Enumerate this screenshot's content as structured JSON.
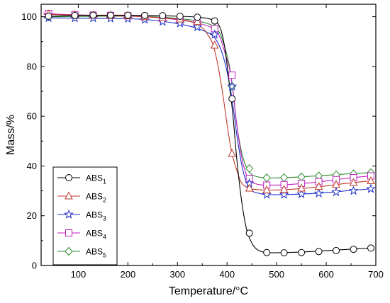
{
  "chart_data": {
    "type": "line",
    "xlabel": "Temperature/°C",
    "ylabel": "Mass/%",
    "xlim": [
      25,
      700
    ],
    "ylim": [
      0,
      105
    ],
    "x_ticks": [
      100,
      200,
      300,
      400,
      500,
      600,
      700
    ],
    "y_ticks": [
      0,
      20,
      40,
      60,
      80,
      100
    ],
    "x_tick_labels": [
      "100",
      "200",
      "300",
      "400",
      "500",
      "600",
      "700"
    ],
    "y_tick_labels": [
      "0",
      "20",
      "40",
      "60",
      "80",
      "100"
    ],
    "legend_position": "bottom-left",
    "grid": false,
    "series": [
      {
        "name": "ABS1",
        "label_base": "ABS",
        "label_sub": "1",
        "color": "#000000",
        "marker": "circle",
        "x": [
          30,
          60,
          100,
          150,
          200,
          250,
          300,
          340,
          370,
          385,
          395,
          405,
          412,
          420,
          430,
          440,
          450,
          460,
          475,
          490,
          520,
          560,
          620,
          690
        ],
        "y": [
          100,
          100.3,
          100.5,
          100.6,
          100.6,
          100.5,
          100.2,
          99.8,
          98.8,
          96,
          88,
          72,
          60,
          42,
          25,
          14,
          9,
          6.5,
          5.3,
          5.1,
          5.2,
          5.5,
          6.2,
          7.0
        ],
        "marker_x": [
          40,
          93,
          130,
          165,
          200,
          234,
          270,
          305,
          340,
          375,
          410,
          445,
          480,
          515,
          550,
          585,
          620,
          655,
          690
        ],
        "marker_y": [
          100.2,
          100.5,
          100.6,
          100.6,
          100.6,
          100.5,
          100.4,
          100.2,
          99.8,
          98.3,
          67,
          13,
          5.2,
          5.1,
          5.2,
          5.6,
          6.0,
          6.5,
          7.0
        ]
      },
      {
        "name": "ABS2",
        "label_base": "ABS",
        "label_sub": "2",
        "color": "#c0392b",
        "marker": "triangle",
        "x": [
          30,
          60,
          100,
          150,
          200,
          250,
          300,
          330,
          350,
          362,
          372,
          382,
          392,
          402,
          410,
          420,
          430,
          445,
          460,
          480,
          520,
          580,
          640,
          690
        ],
        "y": [
          101,
          100.8,
          100.6,
          100.4,
          100.2,
          99.8,
          99,
          97.8,
          95.5,
          92.5,
          88.5,
          80,
          68,
          54,
          45,
          38,
          33,
          31,
          30.5,
          30.3,
          30.5,
          31.5,
          33,
          34
        ],
        "marker_x": [
          40,
          93,
          130,
          165,
          200,
          234,
          270,
          305,
          340,
          375,
          410,
          445,
          480,
          515,
          550,
          585,
          620,
          655,
          690
        ],
        "marker_y": [
          101,
          100.7,
          100.6,
          100.5,
          100.3,
          100,
          99.6,
          99,
          98,
          88.5,
          45,
          31,
          30.3,
          30.5,
          31,
          31.7,
          32.5,
          33.3,
          34
        ]
      },
      {
        "name": "ABS3",
        "label_base": "ABS",
        "label_sub": "3",
        "color": "#1f2fc8",
        "marker": "star",
        "x": [
          30,
          60,
          100,
          150,
          200,
          250,
          300,
          340,
          370,
          385,
          395,
          405,
          412,
          420,
          430,
          440,
          450,
          465,
          480,
          520,
          580,
          640,
          690
        ],
        "y": [
          99.5,
          99.5,
          99.4,
          99.3,
          99.2,
          98.6,
          97.2,
          95.3,
          92.5,
          88,
          82,
          73,
          64,
          52,
          40,
          33,
          30,
          29,
          28.5,
          28.5,
          29,
          30,
          30.8
        ],
        "marker_x": [
          40,
          93,
          130,
          165,
          200,
          234,
          270,
          305,
          340,
          375,
          410,
          445,
          480,
          515,
          550,
          585,
          620,
          655,
          690
        ],
        "marker_y": [
          99.5,
          99.4,
          99.4,
          99.3,
          99.2,
          98.8,
          98.0,
          97.3,
          95.8,
          92.8,
          72,
          33,
          28.5,
          28.5,
          28.7,
          29,
          29.5,
          30,
          30.8
        ]
      },
      {
        "name": "ABS4",
        "label_base": "ABS",
        "label_sub": "4",
        "color": "#c020c0",
        "marker": "square",
        "x": [
          30,
          60,
          100,
          150,
          200,
          250,
          300,
          340,
          370,
          385,
          395,
          405,
          412,
          420,
          430,
          440,
          450,
          465,
          480,
          520,
          580,
          640,
          690
        ],
        "y": [
          101.5,
          101,
          100.7,
          100.5,
          100.3,
          99.8,
          98.8,
          97.5,
          95.5,
          92,
          86,
          79,
          70,
          56,
          43,
          36,
          33.5,
          32.5,
          32.3,
          32.5,
          33.5,
          35,
          36
        ],
        "marker_x": [
          40,
          93,
          130,
          165,
          200,
          234,
          270,
          305,
          340,
          375,
          410,
          445,
          480,
          515,
          550,
          585,
          620,
          655,
          690
        ],
        "marker_y": [
          101.3,
          100.8,
          100.6,
          100.5,
          100.3,
          99.9,
          99.2,
          98.6,
          97.5,
          95.2,
          76.5,
          35,
          32.3,
          32.5,
          33,
          33.7,
          34.5,
          35.3,
          36
        ]
      },
      {
        "name": "ABS5",
        "label_base": "ABS",
        "label_sub": "5",
        "color": "#2e8b2e",
        "marker": "diamond",
        "x": [
          30,
          60,
          100,
          150,
          200,
          250,
          300,
          340,
          370,
          385,
          395,
          405,
          412,
          420,
          430,
          440,
          450,
          465,
          480,
          520,
          580,
          640,
          690
        ],
        "y": [
          100,
          100,
          100.1,
          100.2,
          100.2,
          100,
          99.3,
          98.3,
          96.5,
          93.5,
          88,
          80,
          70,
          56,
          45,
          39,
          36.5,
          35.5,
          35.2,
          35.3,
          36,
          36.8,
          37.3
        ],
        "marker_x": [
          40,
          93,
          130,
          165,
          200,
          234,
          270,
          305,
          340,
          375,
          410,
          445,
          480,
          515,
          550,
          585,
          620,
          655,
          690
        ],
        "marker_y": [
          100,
          100,
          100.1,
          100.2,
          100.2,
          100.1,
          99.7,
          99.2,
          98.3,
          95.5,
          72,
          39,
          35.2,
          35.3,
          35.6,
          36,
          36.4,
          36.8,
          37.3
        ]
      }
    ]
  }
}
